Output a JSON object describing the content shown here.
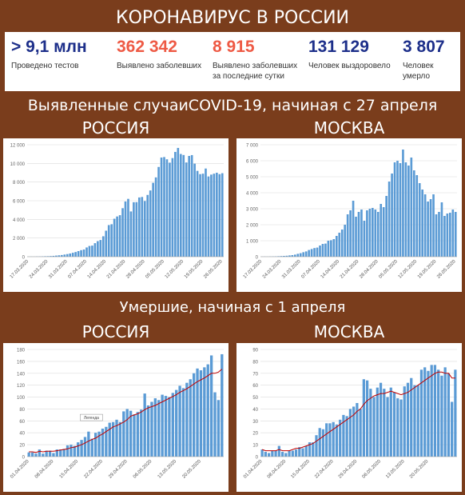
{
  "header": {
    "title": "КОРОНАВИРУС В РОССИИ"
  },
  "stats": [
    {
      "value": "> 9,1 млн",
      "label": "Проведено тестов",
      "color": "#1d2f8a"
    },
    {
      "value": "362 342",
      "label": "Выявлено заболевших",
      "color": "#ee5a45"
    },
    {
      "value": "8 915",
      "label": "Выявлено заболевших за последние сутки",
      "color": "#ee5a45"
    },
    {
      "value": "131 129",
      "label": "Человек выздоровело",
      "color": "#1d2f8a"
    },
    {
      "value": "3 807",
      "label": "Человек умерло",
      "color": "#1d2f8a"
    }
  ],
  "section1": {
    "title": "Выявленные случаиCOVID-19, начиная с 27 апреля"
  },
  "section2": {
    "title": "Умершие, начиная с 1 апреля"
  },
  "panels": {
    "cases_russia_label": "РОССИЯ",
    "cases_moscow_label": "МОСКВА",
    "deaths_russia_label": "РОССИЯ",
    "deaths_moscow_label": "МОСКВА"
  },
  "colors": {
    "bar": "#5b9bd5",
    "trend": "#c00000",
    "background": "#7a3d1c"
  },
  "chart_data": [
    {
      "id": "cases-russia",
      "type": "bar",
      "ylim": [
        0,
        12000
      ],
      "yticks": [
        0,
        2000,
        4000,
        6000,
        8000,
        10000,
        12000
      ],
      "ytick_labels": [
        "0",
        "2 000",
        "4 000",
        "6 000",
        "8 000",
        "10 000",
        "12 000"
      ],
      "xtick_labels": [
        "17.03.2020",
        "24.03.2020",
        "31.03.2020",
        "07.04.2020",
        "14.04.2020",
        "21.04.2020",
        "28.04.2020",
        "05.05.2020",
        "12.05.2020",
        "19.05.2020",
        "26.05.2020"
      ],
      "values": [
        8,
        12,
        10,
        21,
        23,
        34,
        48,
        56,
        70,
        90,
        120,
        150,
        180,
        230,
        280,
        340,
        420,
        500,
        600,
        700,
        770,
        990,
        1150,
        1190,
        1450,
        1670,
        1790,
        2190,
        2790,
        3390,
        3480,
        4070,
        4310,
        4450,
        5200,
        5920,
        6200,
        4850,
        5840,
        5850,
        6350,
        6400,
        5970,
        6620,
        7100,
        7920,
        8500,
        9620,
        10630,
        10680,
        10440,
        10080,
        10570,
        11230,
        11660,
        11010,
        10900,
        10100,
        10800,
        10890,
        9970,
        9200,
        8850,
        8900,
        9450,
        8600,
        8800,
        8900,
        9000,
        8850,
        8950
      ],
      "tick_every": 7
    },
    {
      "id": "cases-moscow",
      "type": "bar",
      "ylim": [
        0,
        7000
      ],
      "yticks": [
        0,
        1000,
        2000,
        3000,
        4000,
        5000,
        6000,
        7000
      ],
      "ytick_labels": [
        "0",
        "1 000",
        "2 000",
        "3 000",
        "4 000",
        "5 000",
        "6 000",
        "7 000"
      ],
      "xtick_labels": [
        "17.03.2020",
        "24.03.2020",
        "31.03.2020",
        "07.04.2020",
        "14.04.2020",
        "21.04.2020",
        "28.04.2020",
        "05.05.2020",
        "12.05.2020",
        "19.05.2020",
        "26.05.2020"
      ],
      "values": [
        5,
        8,
        6,
        12,
        14,
        20,
        30,
        40,
        50,
        60,
        80,
        100,
        130,
        180,
        220,
        280,
        330,
        420,
        480,
        540,
        570,
        700,
        800,
        820,
        1000,
        1030,
        1100,
        1300,
        1500,
        1700,
        2000,
        2650,
        2900,
        3500,
        2500,
        2800,
        2950,
        2250,
        2900,
        3000,
        3050,
        2950,
        2800,
        3300,
        3100,
        3800,
        4700,
        5200,
        5900,
        6000,
        5850,
        6700,
        5900,
        5700,
        6200,
        5400,
        5100,
        4600,
        4200,
        3900,
        3450,
        3600,
        3900,
        2650,
        2800,
        3400,
        2550,
        2700,
        2750,
        2950,
        2800
      ],
      "tick_every": 7
    },
    {
      "id": "deaths-russia",
      "type": "bar",
      "ylim": [
        0,
        180
      ],
      "yticks": [
        0,
        20,
        40,
        60,
        80,
        100,
        120,
        140,
        160,
        180
      ],
      "ytick_labels": [
        "0",
        "20",
        "40",
        "60",
        "80",
        "100",
        "120",
        "140",
        "160",
        "180"
      ],
      "xtick_labels": [
        "01.04.2020",
        "08.04.2020",
        "15.04.2020",
        "22.04.2020",
        "29.04.2020",
        "06.05.2020",
        "13.05.2020",
        "20.05.2020"
      ],
      "values": [
        7,
        7,
        5,
        12,
        5,
        10,
        10,
        6,
        12,
        12,
        13,
        19,
        20,
        18,
        24,
        28,
        33,
        42,
        30,
        40,
        42,
        47,
        50,
        57,
        58,
        62,
        58,
        76,
        80,
        77,
        71,
        75,
        79,
        106,
        86,
        92,
        98,
        95,
        104,
        102,
        100,
        107,
        112,
        119,
        115,
        124,
        130,
        140,
        148,
        145,
        150,
        155,
        170,
        108,
        95,
        172
      ],
      "trend": [
        8,
        8,
        7,
        9,
        8,
        9,
        9,
        9,
        10,
        11,
        12,
        13,
        15,
        16,
        18,
        20,
        23,
        26,
        29,
        31,
        35,
        38,
        42,
        46,
        50,
        52,
        55,
        58,
        62,
        68,
        70,
        72,
        75,
        79,
        82,
        84,
        86,
        89,
        92,
        95,
        98,
        101,
        104,
        108,
        111,
        114,
        118,
        122,
        126,
        129,
        132,
        136,
        140,
        140,
        142,
        147
      ],
      "tick_every": 7,
      "annotation": "Легенда"
    },
    {
      "id": "deaths-moscow",
      "type": "bar",
      "ylim": [
        0,
        90
      ],
      "yticks": [
        0,
        10,
        20,
        30,
        40,
        50,
        60,
        70,
        80,
        90
      ],
      "ytick_labels": [
        "0",
        "10",
        "20",
        "30",
        "40",
        "50",
        "60",
        "70",
        "80",
        "90"
      ],
      "xtick_labels": [
        "01.04.2020",
        "08.04.2020",
        "15.04.2020",
        "22.04.2020",
        "29.04.2020",
        "06.05.2020",
        "13.05.2020",
        "20.05.2020"
      ],
      "values": [
        6,
        4,
        3,
        5,
        5,
        9,
        4,
        3,
        5,
        5,
        6,
        8,
        7,
        9,
        12,
        12,
        18,
        24,
        23,
        28,
        28,
        29,
        27,
        31,
        35,
        34,
        40,
        42,
        45,
        40,
        65,
        64,
        57,
        50,
        58,
        62,
        57,
        50,
        58,
        54,
        49,
        48,
        59,
        62,
        66,
        60,
        60,
        73,
        75,
        72,
        77,
        77,
        73,
        68,
        75,
        70,
        46,
        73
      ],
      "trend": [
        6,
        5,
        5,
        5,
        5,
        6,
        5,
        5,
        5,
        6,
        7,
        7,
        8,
        9,
        10,
        11,
        13,
        15,
        17,
        19,
        21,
        23,
        25,
        27,
        29,
        31,
        33,
        35,
        38,
        40,
        44,
        47,
        49,
        51,
        52,
        53,
        53,
        54,
        55,
        54,
        53,
        52,
        53,
        54,
        56,
        58,
        60,
        62,
        64,
        66,
        68,
        70,
        71,
        71,
        70,
        70,
        66,
        66
      ],
      "tick_every": 7
    }
  ]
}
